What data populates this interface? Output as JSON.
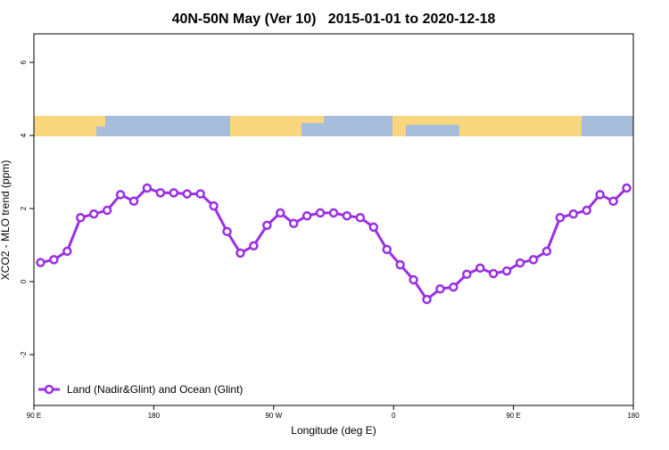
{
  "chart_data": {
    "type": "line",
    "title": "40N-50N May (Ver 10)   2015-01-01 to 2020-12-18",
    "x_label": "Longitude (deg E)",
    "y_label": "XCO2 - MLO trend (ppm)",
    "x": [
      95,
      105,
      115,
      125,
      135,
      145,
      155,
      165,
      175,
      185,
      195,
      205,
      215,
      225,
      235,
      245,
      255,
      265,
      275,
      285,
      295,
      305,
      315,
      325,
      335,
      345,
      355,
      365,
      375,
      385,
      395,
      405,
      415,
      425,
      435,
      445,
      455,
      465,
      475,
      485,
      495,
      505,
      515,
      525,
      535
    ],
    "series": [
      {
        "name": "Land (Nadir&Glint) and Ocean (Glint)",
        "color": "#9b30e0",
        "values": [
          0.52,
          0.6,
          0.83,
          1.75,
          1.85,
          1.95,
          2.38,
          2.2,
          2.56,
          2.43,
          2.43,
          2.4,
          2.4,
          2.07,
          1.37,
          0.78,
          0.98,
          1.54,
          1.88,
          1.59,
          1.8,
          1.88,
          1.88,
          1.8,
          1.75,
          1.49,
          0.88,
          0.46,
          0.05,
          -0.49,
          -0.2,
          -0.15,
          0.2,
          0.37,
          0.22,
          0.29,
          0.51,
          0.6,
          0.83,
          1.75,
          1.85,
          1.95,
          2.38,
          2.2,
          2.56
        ]
      }
    ],
    "xlim": [
      90,
      540
    ],
    "xticks": [
      {
        "value": 90,
        "label": "90 E"
      },
      {
        "value": 180,
        "label": "180"
      },
      {
        "value": 270,
        "label": "90 W"
      },
      {
        "value": 360,
        "label": "0"
      },
      {
        "value": 450,
        "label": "90 E"
      },
      {
        "value": 540,
        "label": "180"
      }
    ],
    "ylim": [
      -3.39,
      6.78
    ],
    "yticks": [
      -2,
      0,
      2,
      4,
      6
    ],
    "legend": "bottom-left"
  }
}
